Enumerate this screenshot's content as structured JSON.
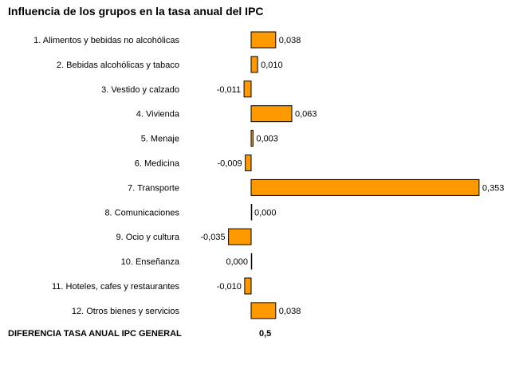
{
  "chart_data": {
    "type": "bar",
    "orientation": "horizontal",
    "title": "Influencia de los grupos en la tasa anual del IPC",
    "categories": [
      "1. Alimentos y bebidas no alcohólicas",
      "2. Bebidas alcohólicas y tabaco",
      "3. Vestido y calzado",
      "4. Vivienda",
      "5. Menaje",
      "6. Medicina",
      "7. Transporte",
      "8. Comunicaciones",
      "9. Ocio y cultura",
      "10. Enseñanza",
      "11. Hoteles, cafes y restaurantes",
      "12. Otros bienes y servicios"
    ],
    "values": [
      0.038,
      0.01,
      -0.011,
      0.063,
      0.003,
      -0.009,
      0.353,
      0.0,
      -0.035,
      0.0,
      -0.01,
      0.038
    ],
    "value_labels": [
      "0,038",
      "0,010",
      "-0,011",
      "0,063",
      "0,003",
      "-0,009",
      "0,353",
      "0,000",
      "-0,035",
      "0,000",
      "-0,010",
      "0,038"
    ],
    "bar_color": "#FF9900",
    "grid": false,
    "legend": "none",
    "total": {
      "label": "DIFERENCIA TASA ANUAL IPC GENERAL",
      "value": "0,5"
    }
  }
}
